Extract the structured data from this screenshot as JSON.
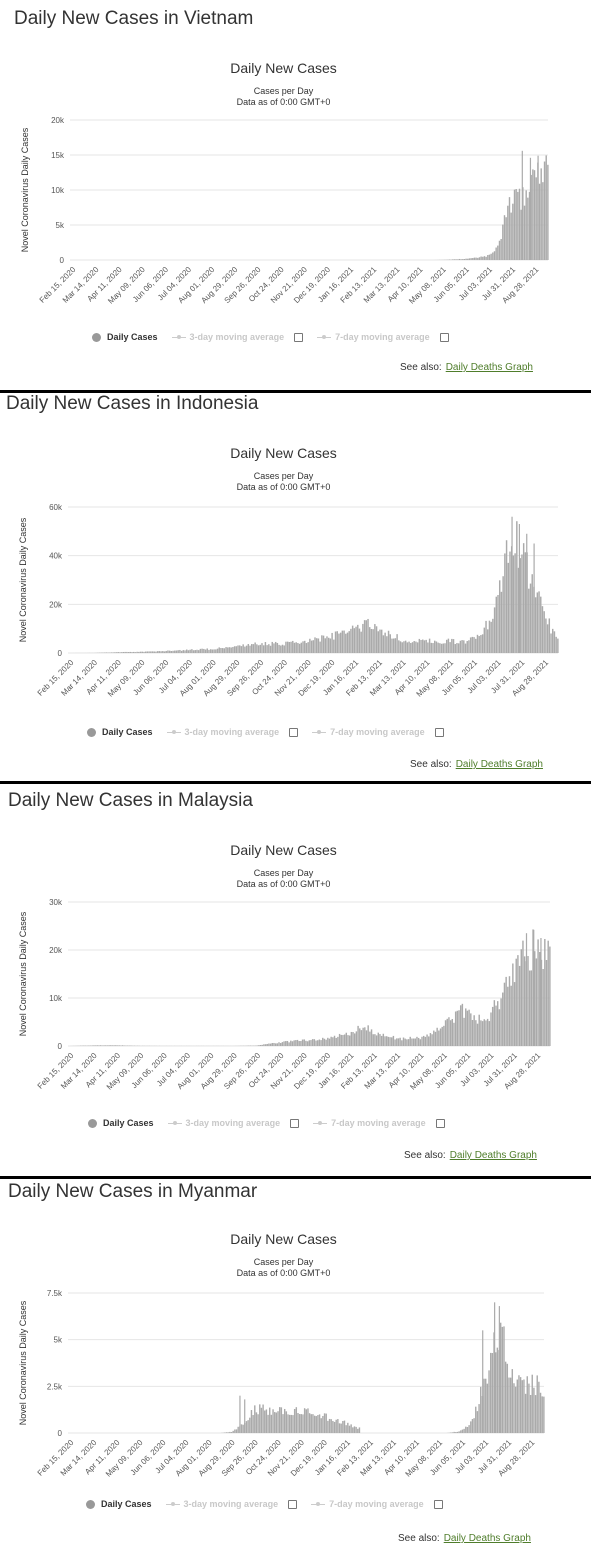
{
  "common": {
    "chart_title": "Daily New Cases",
    "subtitle_line1": "Cases per Day",
    "subtitle_line2": "Data as of 0:00 GMT+0",
    "ylabel": "Novel Coronavirus Daily Cases",
    "legend_daily": "Daily Cases",
    "legend_ma3": "3-day moving average",
    "legend_ma7": "7-day moving average",
    "see_also_label": "See also:",
    "see_also_link": "Daily Deaths Graph",
    "bar_color": "#aaaaaa",
    "grid_color": "#e6e6e6",
    "x_tick_labels": [
      "Feb 15, 2020",
      "Mar 14, 2020",
      "Apr 11, 2020",
      "May 09, 2020",
      "Jun 06, 2020",
      "Jul 04, 2020",
      "Aug 01, 2020",
      "Aug 29, 2020",
      "Sep 26, 2020",
      "Oct 24, 2020",
      "Nov 21, 2020",
      "Dec 19, 2020",
      "Jan 16, 2021",
      "Feb 13, 2021",
      "Mar 13, 2021",
      "Apr 10, 2021",
      "May 08, 2021",
      "Jun 05, 2021",
      "Jul 03, 2021",
      "Jul 31, 2021",
      "Aug 28, 2021"
    ]
  },
  "panels": [
    {
      "heading": "Daily New Cases in Vietnam",
      "y_tick_labels": [
        "0",
        "5k",
        "10k",
        "15k",
        "20k"
      ],
      "chart_data": {
        "type": "bar",
        "title": "Daily New Cases",
        "ylabel": "Novel Coronavirus Daily Cases",
        "ylim": [
          0,
          20000
        ],
        "x_range": [
          "2020-02-15",
          "2021-09-10"
        ],
        "series": [
          {
            "name": "Daily Cases",
            "anchors": [
              [
                "2020-02-15",
                0
              ],
              [
                "2021-04-25",
                0
              ],
              [
                "2021-05-08",
                30
              ],
              [
                "2021-05-25",
                120
              ],
              [
                "2021-06-10",
                250
              ],
              [
                "2021-06-25",
                500
              ],
              [
                "2021-07-03",
                900
              ],
              [
                "2021-07-10",
                2000
              ],
              [
                "2021-07-17",
                4500
              ],
              [
                "2021-07-24",
                7500
              ],
              [
                "2021-07-31",
                8500
              ],
              [
                "2021-08-07",
                9000
              ],
              [
                "2021-08-14",
                9500
              ],
              [
                "2021-08-21",
                11000
              ],
              [
                "2021-08-28",
                12500
              ],
              [
                "2021-09-04",
                14000
              ],
              [
                "2021-09-10",
                13000
              ]
            ]
          }
        ]
      }
    },
    {
      "heading": "Daily New Cases in Indonesia",
      "y_tick_labels": [
        "0",
        "20k",
        "40k",
        "60k"
      ],
      "chart_data": {
        "type": "bar",
        "title": "Daily New Cases",
        "ylabel": "Novel Coronavirus Daily Cases",
        "ylim": [
          0,
          60000
        ],
        "x_range": [
          "2020-02-15",
          "2021-09-10"
        ],
        "series": [
          {
            "name": "Daily Cases",
            "anchors": [
              [
                "2020-02-15",
                0
              ],
              [
                "2020-03-14",
                40
              ],
              [
                "2020-04-11",
                300
              ],
              [
                "2020-05-09",
                500
              ],
              [
                "2020-06-06",
                800
              ],
              [
                "2020-07-04",
                1300
              ],
              [
                "2020-08-01",
                1700
              ],
              [
                "2020-08-29",
                2700
              ],
              [
                "2020-09-26",
                4000
              ],
              [
                "2020-10-24",
                3800
              ],
              [
                "2020-11-21",
                5000
              ],
              [
                "2020-12-19",
                7000
              ],
              [
                "2021-01-16",
                10000
              ],
              [
                "2021-01-30",
                13000
              ],
              [
                "2021-02-13",
                9000
              ],
              [
                "2021-03-13",
                5500
              ],
              [
                "2021-04-10",
                5000
              ],
              [
                "2021-05-08",
                5000
              ],
              [
                "2021-05-25",
                4500
              ],
              [
                "2021-06-05",
                7000
              ],
              [
                "2021-06-19",
                12000
              ],
              [
                "2021-07-03",
                26000
              ],
              [
                "2021-07-10",
                38000
              ],
              [
                "2021-07-17",
                50000
              ],
              [
                "2021-07-24",
                45000
              ],
              [
                "2021-07-31",
                38000
              ],
              [
                "2021-08-07",
                33000
              ],
              [
                "2021-08-14",
                28000
              ],
              [
                "2021-08-21",
                20000
              ],
              [
                "2021-08-28",
                14000
              ],
              [
                "2021-09-04",
                8000
              ],
              [
                "2021-09-10",
                5000
              ]
            ]
          }
        ]
      }
    },
    {
      "heading": "Daily New Cases in Malaysia",
      "y_tick_labels": [
        "0",
        "10k",
        "20k",
        "30k"
      ],
      "chart_data": {
        "type": "bar",
        "title": "Daily New Cases",
        "ylabel": "Novel Coronavirus Daily Cases",
        "ylim": [
          0,
          30000
        ],
        "x_range": [
          "2020-02-15",
          "2021-09-10"
        ],
        "series": [
          {
            "name": "Daily Cases",
            "anchors": [
              [
                "2020-02-15",
                0
              ],
              [
                "2020-03-14",
                120
              ],
              [
                "2020-04-11",
                150
              ],
              [
                "2020-05-09",
                40
              ],
              [
                "2020-06-06",
                20
              ],
              [
                "2020-08-29",
                20
              ],
              [
                "2020-09-26",
                100
              ],
              [
                "2020-10-24",
                800
              ],
              [
                "2020-11-21",
                1200
              ],
              [
                "2020-12-19",
                1500
              ],
              [
                "2021-01-16",
                3000
              ],
              [
                "2021-01-30",
                4500
              ],
              [
                "2021-02-13",
                3000
              ],
              [
                "2021-03-13",
                1500
              ],
              [
                "2021-04-10",
                1800
              ],
              [
                "2021-05-08",
                4500
              ],
              [
                "2021-05-29",
                7500
              ],
              [
                "2021-06-12",
                5500
              ],
              [
                "2021-06-26",
                6000
              ],
              [
                "2021-07-03",
                7500
              ],
              [
                "2021-07-17",
                12000
              ],
              [
                "2021-07-31",
                17000
              ],
              [
                "2021-08-14",
                20500
              ],
              [
                "2021-08-28",
                21500
              ],
              [
                "2021-09-10",
                19500
              ]
            ]
          }
        ]
      }
    },
    {
      "heading": "Daily New Cases in Myanmar",
      "y_tick_labels": [
        "0",
        "2.5k",
        "5k",
        "7.5k"
      ],
      "chart_data": {
        "type": "bar",
        "title": "Daily New Cases",
        "ylabel": "Novel Coronavirus Daily Cases",
        "ylim": [
          0,
          7500
        ],
        "x_range": [
          "2020-02-15",
          "2021-09-10"
        ],
        "series": [
          {
            "name": "Daily Cases",
            "anchors": [
              [
                "2020-02-15",
                0
              ],
              [
                "2020-08-15",
                0
              ],
              [
                "2020-08-29",
                60
              ],
              [
                "2020-09-12",
                500
              ],
              [
                "2020-09-26",
                1300
              ],
              [
                "2020-10-10",
                1300
              ],
              [
                "2020-10-24",
                1250
              ],
              [
                "2020-11-07",
                1150
              ],
              [
                "2020-11-21",
                1300
              ],
              [
                "2020-12-05",
                1100
              ],
              [
                "2020-12-19",
                900
              ],
              [
                "2021-01-02",
                700
              ],
              [
                "2021-01-16",
                500
              ],
              [
                "2021-01-30",
                250
              ],
              [
                "2021-02-01",
                0
              ],
              [
                "2021-05-15",
                0
              ],
              [
                "2021-05-29",
                80
              ],
              [
                "2021-06-12",
                400
              ],
              [
                "2021-06-26",
                2200
              ],
              [
                "2021-07-03",
                3500
              ],
              [
                "2021-07-10",
                5000
              ],
              [
                "2021-07-17",
                5800
              ],
              [
                "2021-07-24",
                4800
              ],
              [
                "2021-07-31",
                3600
              ],
              [
                "2021-08-14",
                2600
              ],
              [
                "2021-08-28",
                2700
              ],
              [
                "2021-09-10",
                2300
              ]
            ]
          }
        ]
      }
    }
  ]
}
